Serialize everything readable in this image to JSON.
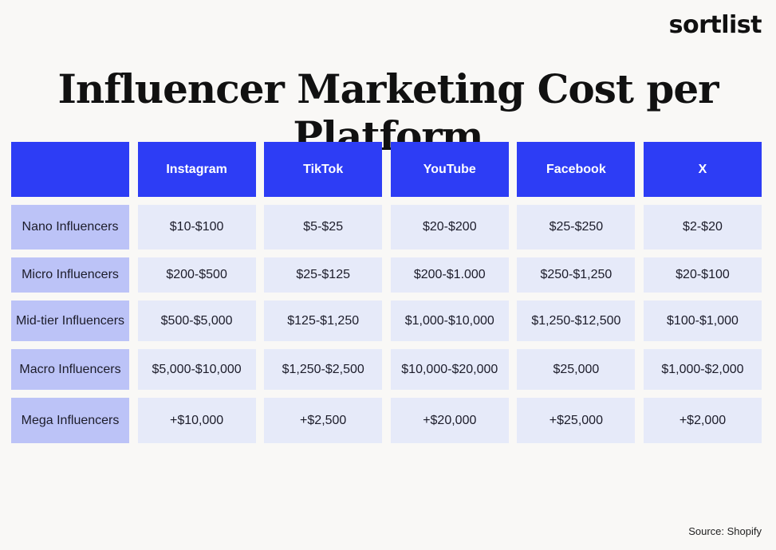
{
  "brand": "sortlist",
  "title": "Influencer Marketing Cost per Platform",
  "platforms": [
    "Instagram",
    "TikTok",
    "YouTube",
    "Facebook",
    "X"
  ],
  "rows": [
    {
      "label": "Nano Influencers",
      "values": [
        "$10-$100",
        "$5-$25",
        "$20-$200",
        "$25-$250",
        "$2-$20"
      ]
    },
    {
      "label": "Micro Influencers",
      "values": [
        "$200-$500",
        "$25-$125",
        "$200-$1.000",
        "$250-$1,250",
        "$20-$100"
      ]
    },
    {
      "label": "Mid-tier Influencers",
      "values": [
        "$500-$5,000",
        "$125-$1,250",
        "$1,000-$10,000",
        "$1,250-$12,500",
        "$100-$1,000"
      ]
    },
    {
      "label": "Macro Influencers",
      "values": [
        "$5,000-$10,000",
        "$1,250-$2,500",
        "$10,000-$20,000",
        "$25,000",
        "$1,000-$2,000"
      ]
    },
    {
      "label": "Mega Influencers",
      "values": [
        "+$10,000",
        "+$2,500",
        "+$20,000",
        "+$25,000",
        "+$2,000"
      ]
    }
  ],
  "source": "Source: Shopify",
  "colors": {
    "header": "#2d3df5",
    "row_label": "#bcc3f7",
    "cell": "#e6eaf9",
    "background": "#f9f8f6"
  }
}
